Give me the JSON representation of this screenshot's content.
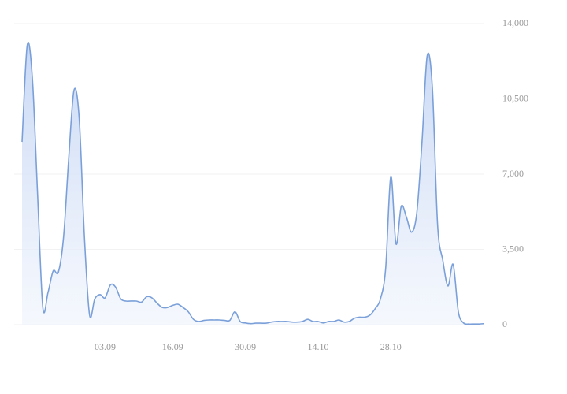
{
  "chart_data": {
    "type": "area",
    "categories": [
      null,
      null,
      null,
      null,
      null,
      null,
      null,
      null,
      null,
      null,
      null,
      null,
      null,
      null,
      null,
      null,
      "03.09",
      null,
      null,
      null,
      null,
      null,
      null,
      null,
      null,
      null,
      null,
      null,
      null,
      "16.09",
      null,
      null,
      null,
      null,
      null,
      null,
      null,
      null,
      null,
      null,
      null,
      null,
      null,
      "30.09",
      null,
      null,
      null,
      null,
      null,
      null,
      null,
      null,
      null,
      null,
      null,
      null,
      null,
      "14.10",
      null,
      null,
      null,
      null,
      null,
      null,
      null,
      null,
      null,
      null,
      null,
      null,
      null,
      "28.10",
      null,
      null,
      null,
      null,
      null,
      null,
      null,
      null,
      null,
      null,
      null,
      null,
      null,
      null,
      null,
      null,
      null,
      null
    ],
    "values": [
      8500,
      13000,
      11400,
      6000,
      800,
      1500,
      2500,
      2450,
      4100,
      7800,
      10900,
      9600,
      4100,
      450,
      1200,
      1400,
      1250,
      1850,
      1750,
      1200,
      1100,
      1100,
      1100,
      1050,
      1300,
      1250,
      1000,
      800,
      800,
      900,
      950,
      800,
      600,
      250,
      150,
      200,
      220,
      220,
      220,
      200,
      200,
      600,
      150,
      80,
      50,
      70,
      70,
      70,
      120,
      150,
      150,
      150,
      120,
      120,
      150,
      250,
      150,
      150,
      80,
      150,
      150,
      220,
      120,
      150,
      300,
      350,
      350,
      450,
      750,
      1200,
      2600,
      6900,
      3750,
      5500,
      5000,
      4300,
      5200,
      8500,
      12500,
      11000,
      4650,
      3000,
      1800,
      2800,
      600,
      80,
      30,
      30,
      30,
      50
    ],
    "color": "#7ba0d9",
    "ylim": [
      0,
      14000
    ],
    "yticks": [
      0,
      {
        "value": 3500,
        "label": "3,500"
      },
      {
        "value": 7000,
        "label": "7,000"
      },
      {
        "value": 10500,
        "label": "10,500"
      },
      {
        "value": 14000,
        "label": "14,000"
      }
    ],
    "grid": true
  }
}
